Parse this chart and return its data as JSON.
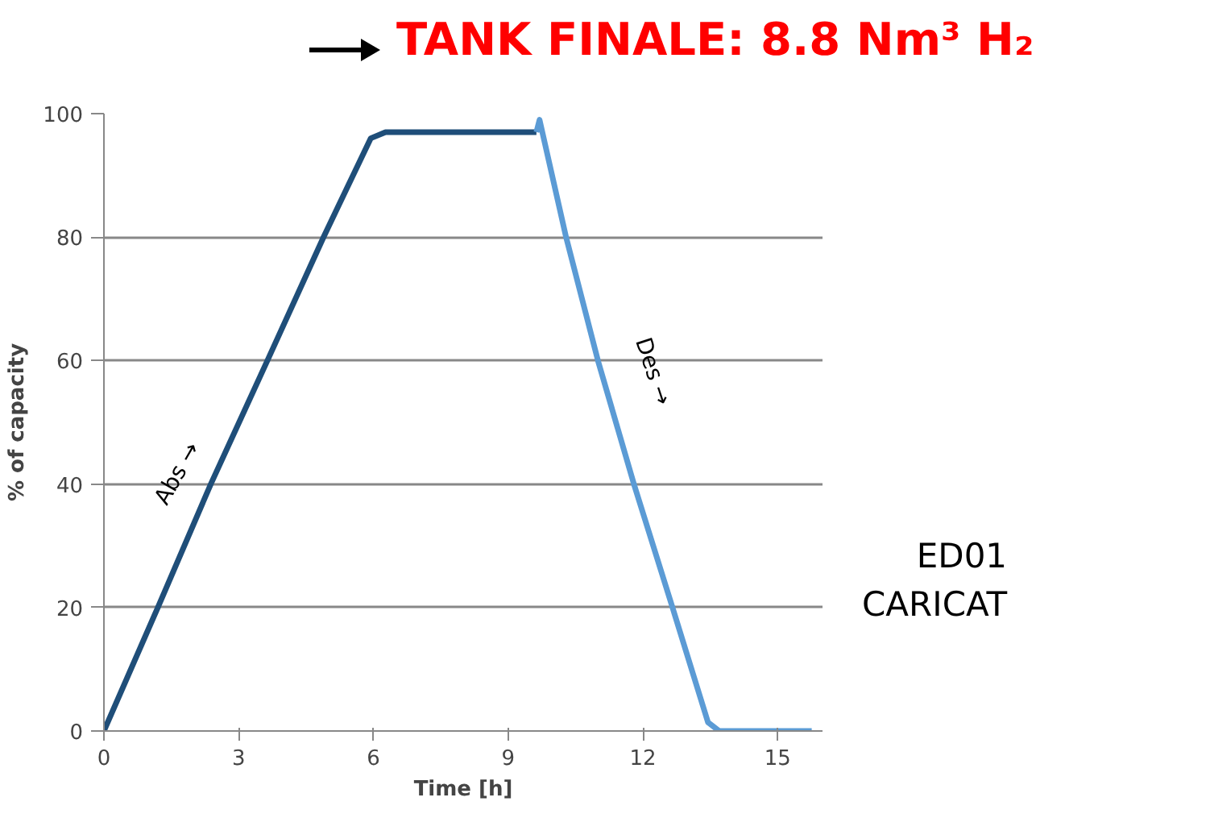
{
  "chart_data": {
    "type": "line",
    "title": "TANK FINALE: 8.8 Nm³ H₂",
    "xlabel": "Time [h]",
    "ylabel": "% of capacity",
    "xlim": [
      0,
      16
    ],
    "ylim": [
      0,
      100
    ],
    "xticks": [
      0,
      3,
      6,
      9,
      12,
      15
    ],
    "yticks": [
      0,
      20,
      40,
      60,
      80,
      100
    ],
    "grid": "y",
    "line_style": "solid",
    "series": [
      {
        "color": "#1f4e79",
        "x": [
          0,
          1.2,
          2.38,
          3.64,
          4.89,
          5.94,
          6.27,
          9.63
        ],
        "values": [
          0,
          20,
          40,
          60,
          80,
          96,
          97,
          97
        ]
      },
      {
        "color": "#5b9bd5",
        "x": [
          9.63,
          9.7,
          10.29,
          11.0,
          11.8,
          12.66,
          13.45,
          13.7,
          15.76
        ],
        "values": [
          97,
          99,
          80,
          60,
          40,
          20,
          1.4,
          0,
          0
        ]
      }
    ],
    "annotations": [
      {
        "text": "Abs →",
        "x": 2.4,
        "y": 38
      },
      {
        "text": "Des →",
        "x": 11.15,
        "y": 56
      },
      "ED01",
      "CARICAT"
    ]
  }
}
